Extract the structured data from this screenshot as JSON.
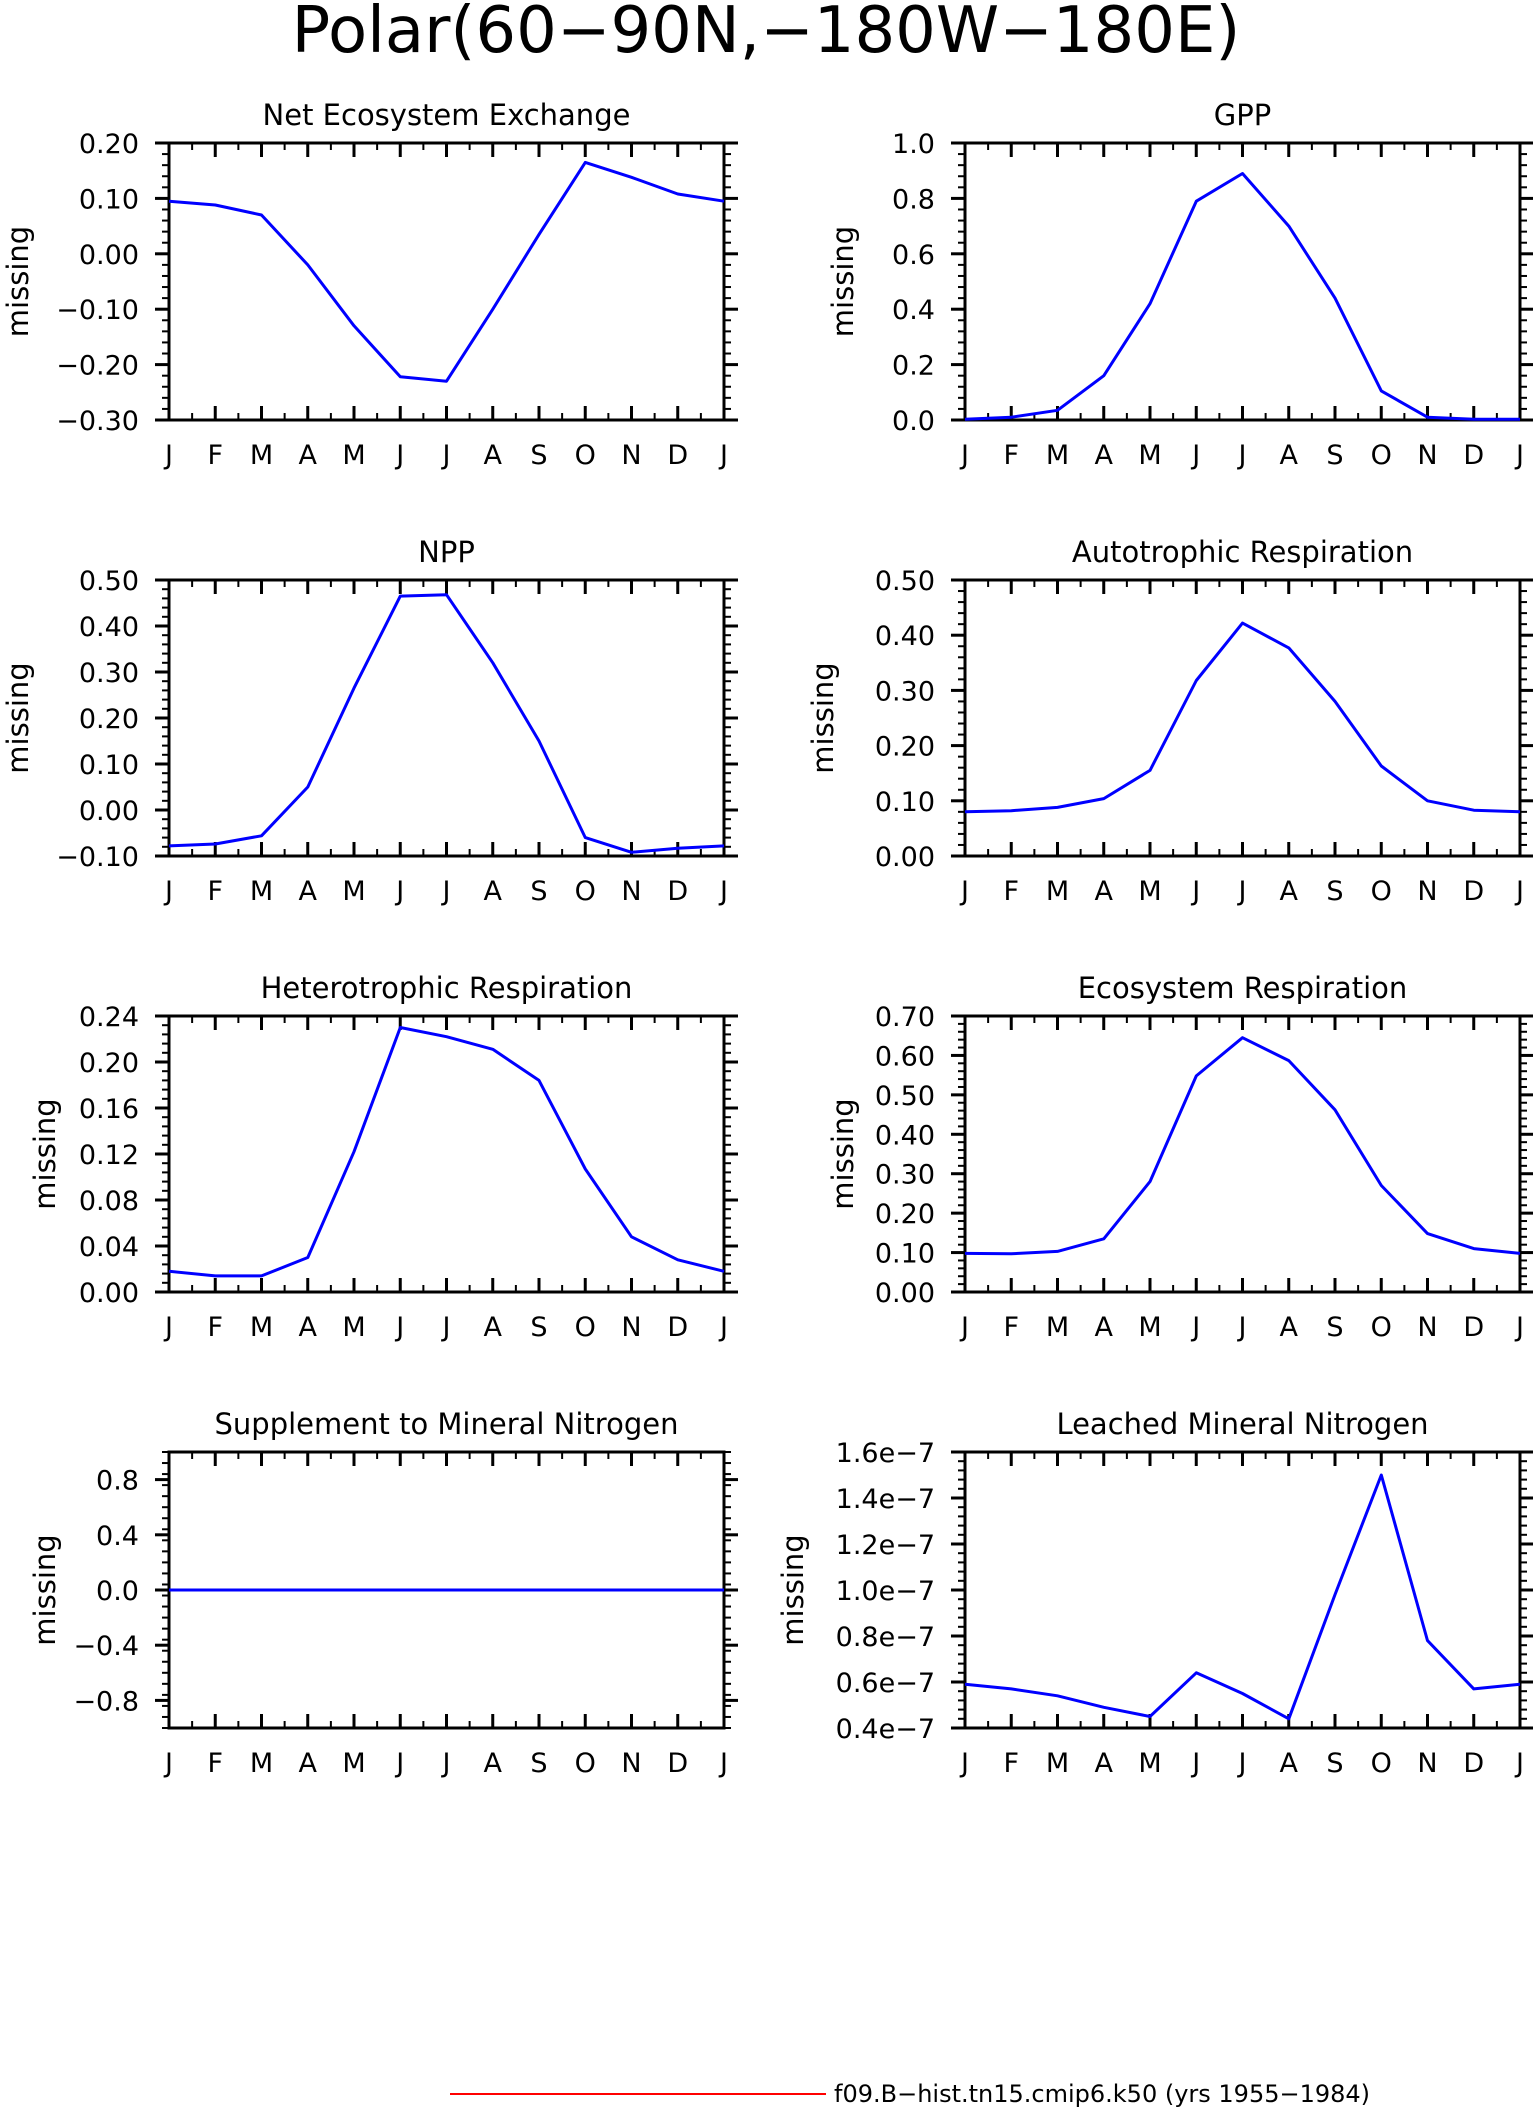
{
  "page_title": "Polar(60−90N,−180W−180E)",
  "legend": {
    "label": "f09.B−hist.tn15.cmip6.k50 (yrs 1955−1984)",
    "color": "#ff0000"
  },
  "colors": {
    "series_line": "#0000ff",
    "axes": "#000000"
  },
  "chart_data": [
    {
      "type": "line",
      "title": "Net Ecosystem Exchange",
      "ylabel": "missing",
      "categories": [
        "J",
        "F",
        "M",
        "A",
        "M",
        "J",
        "J",
        "A",
        "S",
        "O",
        "N",
        "D",
        "J"
      ],
      "ylim": [
        -0.3,
        0.2
      ],
      "yticks": [
        -0.3,
        -0.2,
        -0.1,
        0.0,
        0.1,
        0.2
      ],
      "yticklabels": [
        "−0.30",
        "−0.20",
        "−0.10",
        "0.00",
        "0.10",
        "0.20"
      ],
      "series": [
        {
          "values": [
            0.095,
            0.088,
            0.07,
            -0.02,
            -0.13,
            -0.222,
            -0.23,
            -0.1,
            0.035,
            0.165,
            0.138,
            0.108,
            0.095
          ]
        }
      ]
    },
    {
      "type": "line",
      "title": "GPP",
      "ylabel": "missing",
      "categories": [
        "J",
        "F",
        "M",
        "A",
        "M",
        "J",
        "J",
        "A",
        "S",
        "O",
        "N",
        "D",
        "J"
      ],
      "ylim": [
        0.0,
        1.0
      ],
      "yticks": [
        0.0,
        0.2,
        0.4,
        0.6,
        0.8,
        1.0
      ],
      "yticklabels": [
        "0.0",
        "0.2",
        "0.4",
        "0.6",
        "0.8",
        "1.0"
      ],
      "series": [
        {
          "values": [
            0.003,
            0.01,
            0.035,
            0.16,
            0.42,
            0.79,
            0.89,
            0.7,
            0.44,
            0.105,
            0.01,
            0.003,
            0.003
          ]
        }
      ]
    },
    {
      "type": "line",
      "title": "NPP",
      "ylabel": "missing",
      "categories": [
        "J",
        "F",
        "M",
        "A",
        "M",
        "J",
        "J",
        "A",
        "S",
        "O",
        "N",
        "D",
        "J"
      ],
      "ylim": [
        -0.1,
        0.5
      ],
      "yticks": [
        -0.1,
        0.0,
        0.1,
        0.2,
        0.3,
        0.4,
        0.5
      ],
      "yticklabels": [
        "−0.10",
        "0.00",
        "0.10",
        "0.20",
        "0.30",
        "0.40",
        "0.50"
      ],
      "series": [
        {
          "values": [
            -0.078,
            -0.074,
            -0.056,
            0.05,
            0.265,
            0.465,
            0.468,
            0.32,
            0.15,
            -0.06,
            -0.092,
            -0.083,
            -0.078
          ]
        }
      ]
    },
    {
      "type": "line",
      "title": "Autotrophic Respiration",
      "ylabel": "missing",
      "categories": [
        "J",
        "F",
        "M",
        "A",
        "M",
        "J",
        "J",
        "A",
        "S",
        "O",
        "N",
        "D",
        "J"
      ],
      "ylim": [
        0.0,
        0.5
      ],
      "yticks": [
        0.0,
        0.1,
        0.2,
        0.3,
        0.4,
        0.5
      ],
      "yticklabels": [
        "0.00",
        "0.10",
        "0.20",
        "0.30",
        "0.40",
        "0.50"
      ],
      "series": [
        {
          "values": [
            0.08,
            0.082,
            0.088,
            0.104,
            0.155,
            0.318,
            0.422,
            0.377,
            0.28,
            0.163,
            0.1,
            0.083,
            0.08
          ]
        }
      ]
    },
    {
      "type": "line",
      "title": "Heterotrophic Respiration",
      "ylabel": "missing",
      "categories": [
        "J",
        "F",
        "M",
        "A",
        "M",
        "J",
        "J",
        "A",
        "S",
        "O",
        "N",
        "D",
        "J"
      ],
      "ylim": [
        0.0,
        0.24
      ],
      "yticks": [
        0.0,
        0.04,
        0.08,
        0.12,
        0.16,
        0.2,
        0.24
      ],
      "yticklabels": [
        "0.00",
        "0.04",
        "0.08",
        "0.12",
        "0.16",
        "0.20",
        "0.24"
      ],
      "series": [
        {
          "values": [
            0.018,
            0.014,
            0.014,
            0.03,
            0.122,
            0.23,
            0.222,
            0.211,
            0.184,
            0.107,
            0.048,
            0.028,
            0.018
          ]
        }
      ]
    },
    {
      "type": "line",
      "title": "Ecosystem Respiration",
      "ylabel": "missing",
      "categories": [
        "J",
        "F",
        "M",
        "A",
        "M",
        "J",
        "J",
        "A",
        "S",
        "O",
        "N",
        "D",
        "J"
      ],
      "ylim": [
        0.0,
        0.7
      ],
      "yticks": [
        0.0,
        0.1,
        0.2,
        0.3,
        0.4,
        0.5,
        0.6,
        0.7
      ],
      "yticklabels": [
        "0.00",
        "0.10",
        "0.20",
        "0.30",
        "0.40",
        "0.50",
        "0.60",
        "0.70"
      ],
      "series": [
        {
          "values": [
            0.098,
            0.097,
            0.103,
            0.135,
            0.28,
            0.548,
            0.645,
            0.587,
            0.462,
            0.27,
            0.148,
            0.11,
            0.098
          ]
        }
      ]
    },
    {
      "type": "line",
      "title": "Supplement to Mineral Nitrogen",
      "ylabel": "missing",
      "categories": [
        "J",
        "F",
        "M",
        "A",
        "M",
        "J",
        "J",
        "A",
        "S",
        "O",
        "N",
        "D",
        "J"
      ],
      "ylim": [
        -1.0,
        1.0
      ],
      "yticks": [
        -0.8,
        -0.4,
        0.0,
        0.4,
        0.8
      ],
      "yticklabels": [
        "−0.8",
        "−0.4",
        "0.0",
        "0.4",
        "0.8"
      ],
      "series": [
        {
          "values": [
            0,
            0,
            0,
            0,
            0,
            0,
            0,
            0,
            0,
            0,
            0,
            0,
            0
          ]
        }
      ]
    },
    {
      "type": "line",
      "title": "Leached Mineral Nitrogen",
      "ylabel": "missing",
      "categories": [
        "J",
        "F",
        "M",
        "A",
        "M",
        "J",
        "J",
        "A",
        "S",
        "O",
        "N",
        "D",
        "J"
      ],
      "ylim": [
        4e-08,
        1.6e-07
      ],
      "yticks": [
        4e-08,
        6e-08,
        8e-08,
        1e-07,
        1.2e-07,
        1.4e-07,
        1.6e-07
      ],
      "yticklabels": [
        "0.4e−7",
        "0.6e−7",
        "0.8e−7",
        "1.0e−7",
        "1.2e−7",
        "1.4e−7",
        "1.6e−7"
      ],
      "series": [
        {
          "values": [
            5.9e-08,
            5.7e-08,
            5.4e-08,
            4.9e-08,
            4.5e-08,
            6.4e-08,
            5.5e-08,
            4.4e-08,
            9.8e-08,
            1.5e-07,
            7.8e-08,
            5.7e-08,
            5.9e-08
          ]
        }
      ]
    }
  ]
}
